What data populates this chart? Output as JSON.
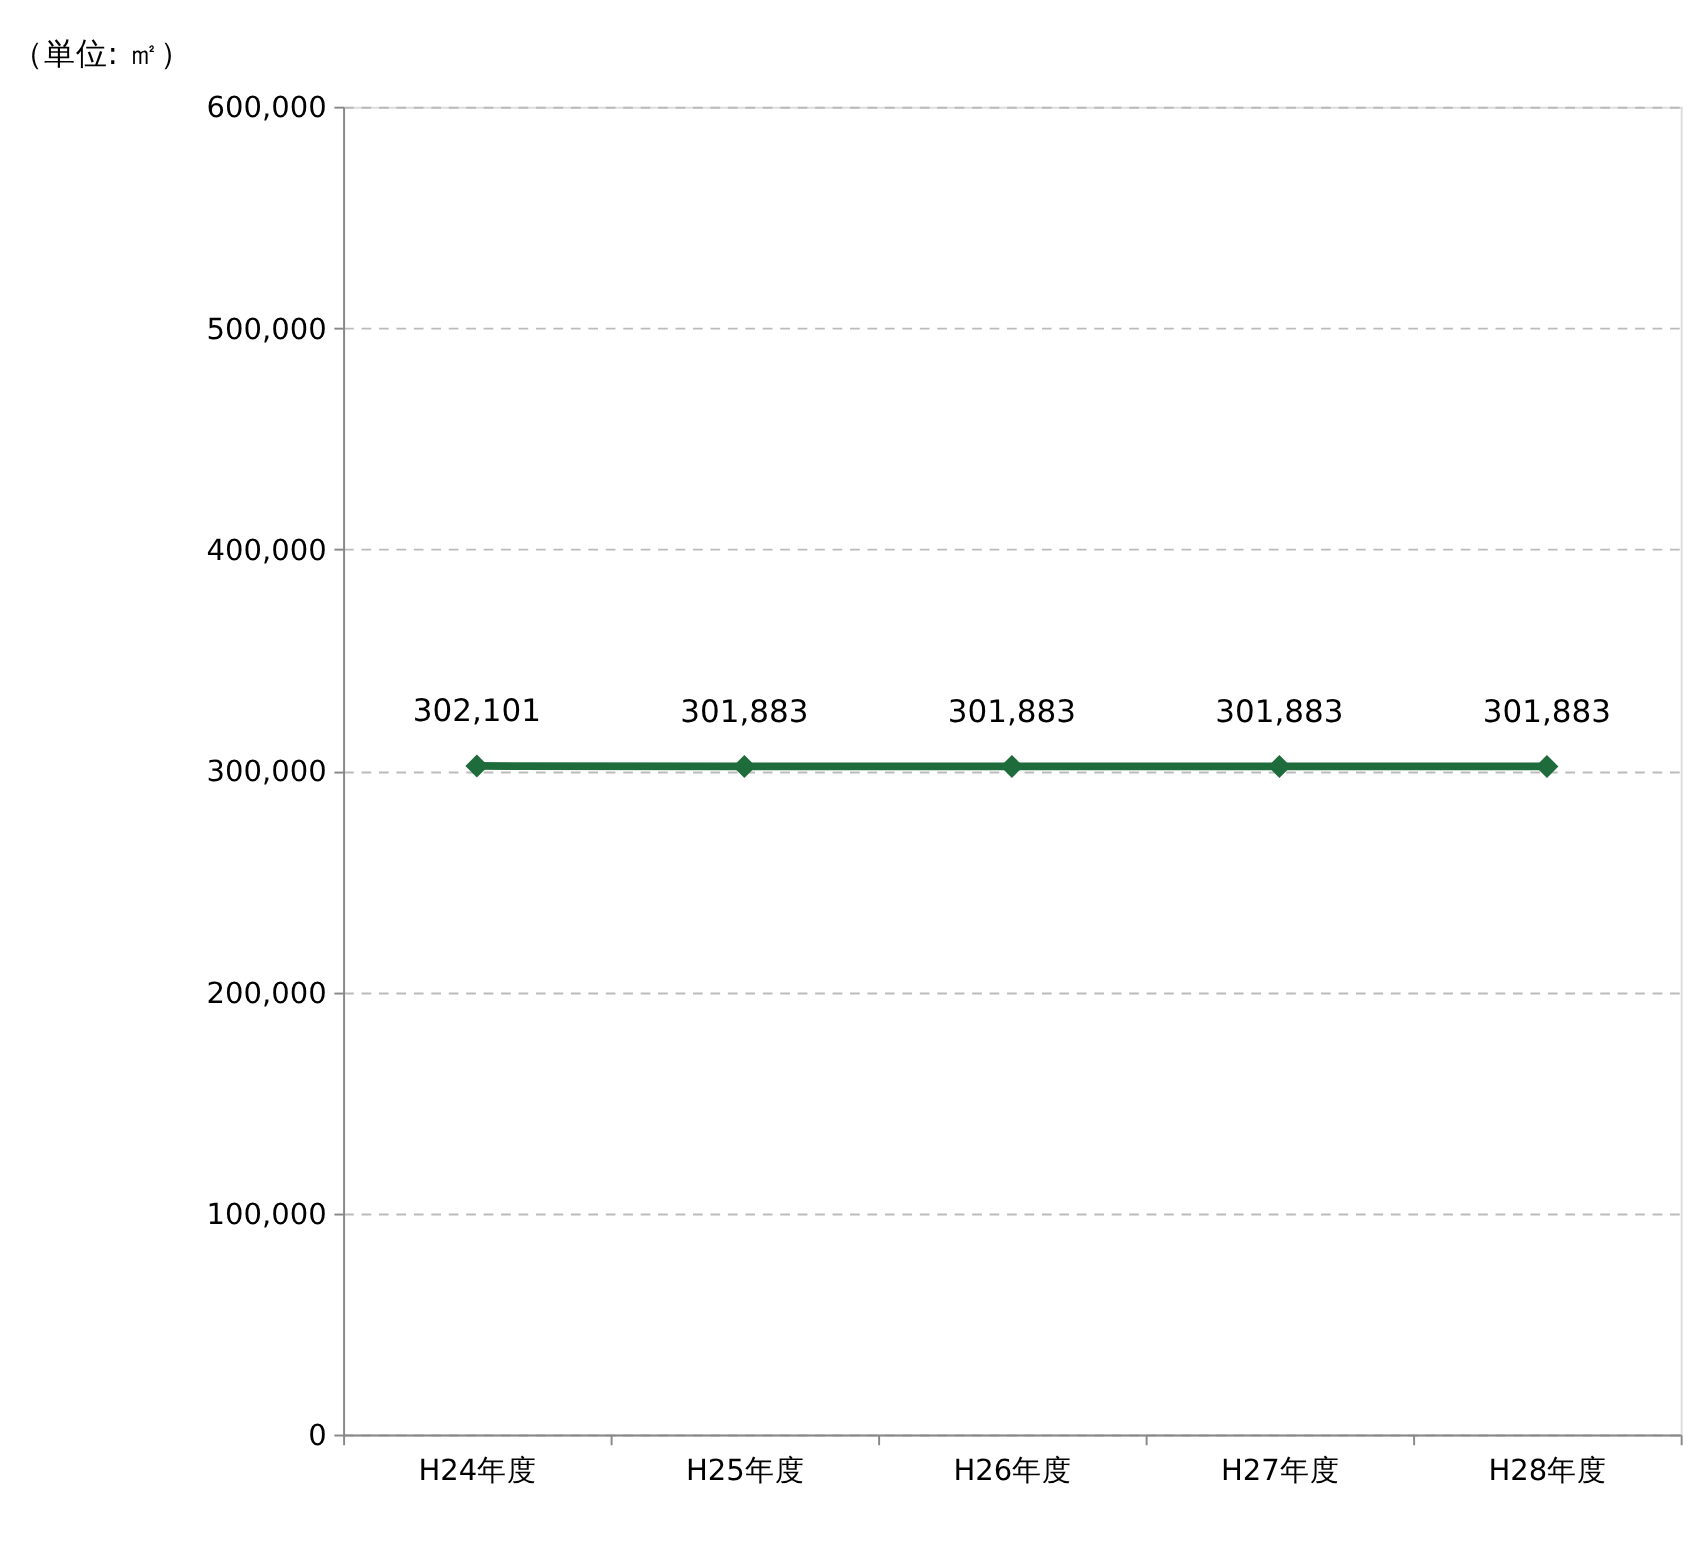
{
  "chart_data": {
    "type": "line",
    "title": "（単位: ㎡）",
    "categories": [
      "H24年度",
      "H25年度",
      "H26年度",
      "H27年度",
      "H28年度"
    ],
    "series": [
      {
        "color": "#1e6b3c",
        "values": [
          302101,
          301883,
          301883,
          301883,
          301883
        ],
        "value_labels": [
          "302,101",
          "301,883",
          "301,883",
          "301,883",
          "301,883"
        ]
      }
    ],
    "ylim": [
      0,
      600000
    ],
    "yticks": [
      0,
      {
        "value": 100000,
        "label": "100,000"
      },
      {
        "value": 200000,
        "label": "200,000"
      },
      {
        "value": 300000,
        "label": "300,000"
      },
      {
        "value": 400000,
        "label": "400,000"
      },
      {
        "value": 500000,
        "label": "500,000"
      },
      {
        "value": 600000,
        "label": "600,000"
      }
    ],
    "grid": "y",
    "marker": "diamond",
    "line_style": "solid"
  }
}
